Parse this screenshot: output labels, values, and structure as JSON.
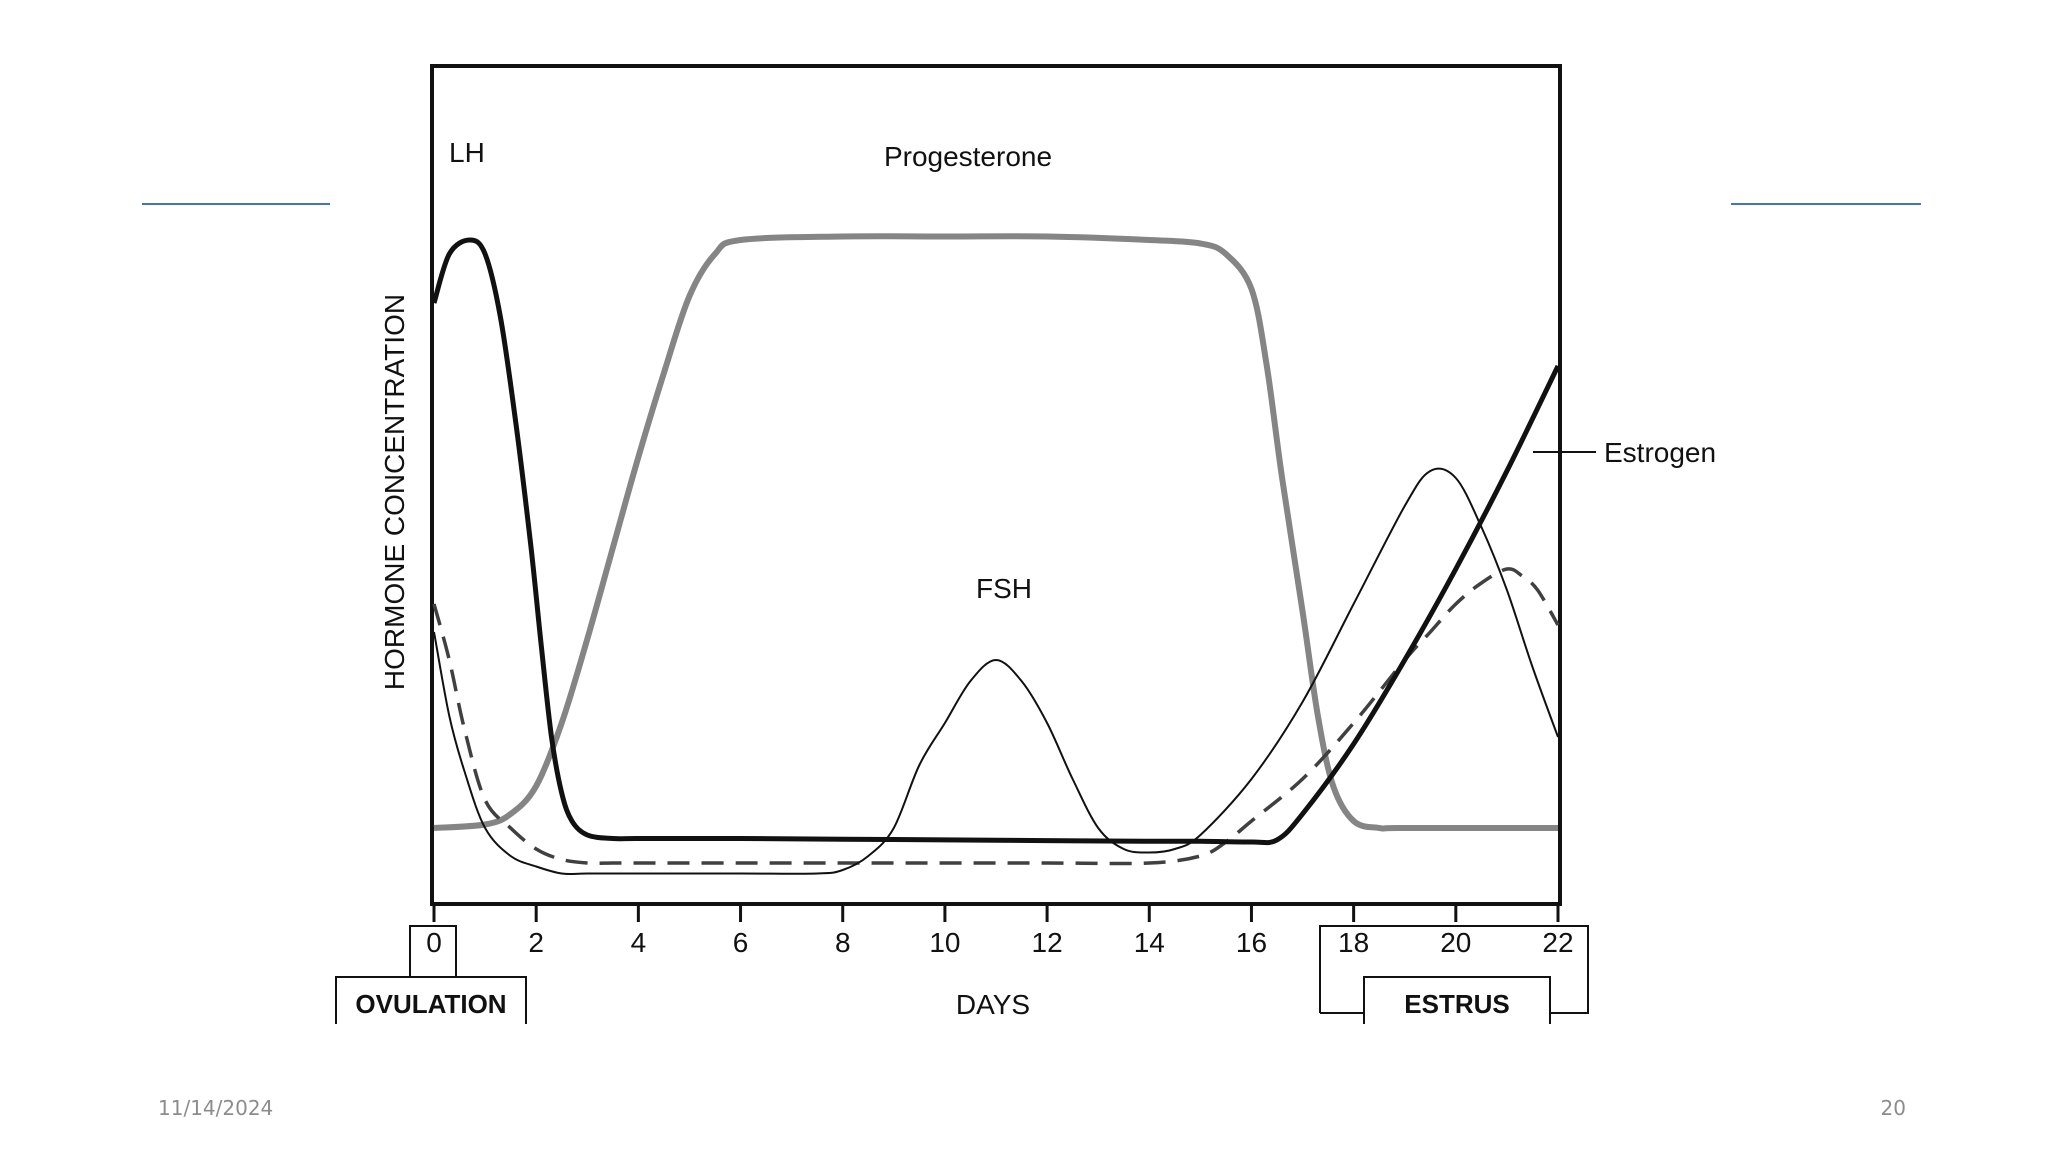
{
  "slide": {
    "date": "11/14/2024",
    "page_number": "20",
    "accent_color": "#4472c4"
  },
  "chart_data": {
    "type": "line",
    "title": "",
    "xlabel": "DAYS",
    "ylabel": "HORMONE CONCENTRATION",
    "xlim": [
      0,
      22
    ],
    "ylim": [
      0,
      100
    ],
    "grid": false,
    "x_ticks": [
      0,
      2,
      4,
      6,
      8,
      10,
      12,
      14,
      16,
      18,
      20,
      22
    ],
    "y_ticks": [],
    "series": [
      {
        "name": "LH",
        "style": "thick-black",
        "color": "#111111",
        "x": [
          0,
          0.3,
          0.7,
          1.0,
          1.3,
          1.6,
          1.9,
          2.1,
          2.3,
          2.5,
          2.7,
          3.0,
          3.5,
          4,
          6,
          8,
          10,
          12,
          14,
          15,
          16,
          16.5,
          17,
          18,
          19,
          20,
          21,
          22
        ],
        "y": [
          77,
          84,
          86,
          84,
          75,
          60,
          42,
          28,
          15,
          7,
          3,
          1,
          0.5,
          0.5,
          0.5,
          0.4,
          0.3,
          0.2,
          0.1,
          0.1,
          0,
          0.3,
          4,
          14,
          26,
          39,
          53,
          68
        ]
      },
      {
        "name": "Progesterone",
        "style": "thick-gray",
        "color": "#858585",
        "x": [
          0,
          1,
          1.5,
          2,
          2.5,
          3,
          3.5,
          4,
          4.5,
          5,
          5.5,
          6,
          8,
          10,
          12,
          14,
          15,
          15.5,
          16,
          16.3,
          16.6,
          17,
          17.3,
          17.6,
          18,
          18.5,
          19,
          22
        ],
        "y": [
          2,
          2.5,
          4,
          8,
          17,
          29,
          42,
          55,
          67,
          78,
          84,
          86,
          86.5,
          86.5,
          86.5,
          86,
          85.5,
          84,
          79,
          68,
          52,
          33,
          18,
          8,
          3,
          2,
          2,
          2
        ]
      },
      {
        "name": "FSH",
        "style": "thin-black",
        "color": "#111111",
        "x": [
          0,
          0.3,
          0.6,
          1,
          1.5,
          2,
          2.5,
          3,
          4,
          6,
          7.5,
          8,
          8.5,
          9,
          9.5,
          10,
          10.5,
          11,
          11.5,
          12,
          12.5,
          13,
          13.5,
          14,
          14.5,
          15,
          16,
          17,
          18,
          19,
          19.5,
          20,
          20.5,
          21,
          21.5,
          22
        ],
        "y": [
          30,
          18,
          10,
          2,
          -2,
          -3.5,
          -4.5,
          -4.5,
          -4.5,
          -4.5,
          -4.5,
          -4,
          -2,
          2,
          11,
          17,
          23,
          26,
          23,
          17,
          9,
          2,
          -1,
          -1.5,
          -1,
          1,
          9,
          20,
          34,
          48,
          53,
          52,
          45,
          36,
          25,
          15
        ]
      },
      {
        "name": "Estrogen",
        "style": "dashed-dark-gray",
        "color": "#404040",
        "x": [
          0,
          0.3,
          0.6,
          1,
          1.5,
          2,
          2.5,
          3,
          3.5,
          4,
          6,
          8,
          10,
          12,
          14,
          15,
          15.5,
          16,
          17,
          18,
          19,
          19.5,
          20,
          20.5,
          21,
          21.3,
          21.6,
          22
        ],
        "y": [
          34,
          26,
          16,
          6,
          2,
          -1,
          -2.5,
          -3,
          -3,
          -3,
          -3,
          -3,
          -3,
          -3,
          -3,
          -2,
          0,
          3,
          9,
          17,
          26,
          30,
          34,
          37,
          39,
          38,
          36,
          31
        ]
      }
    ],
    "annotations": [
      "LH",
      "Progesterone",
      "FSH",
      "Estrogen"
    ],
    "markers": [
      {
        "label": "OVULATION",
        "tick_label": "0",
        "from": 0,
        "to": 0
      },
      {
        "label": "ESTRUS",
        "tick_label": "18 20 22",
        "from": 18,
        "to": 22
      }
    ]
  }
}
